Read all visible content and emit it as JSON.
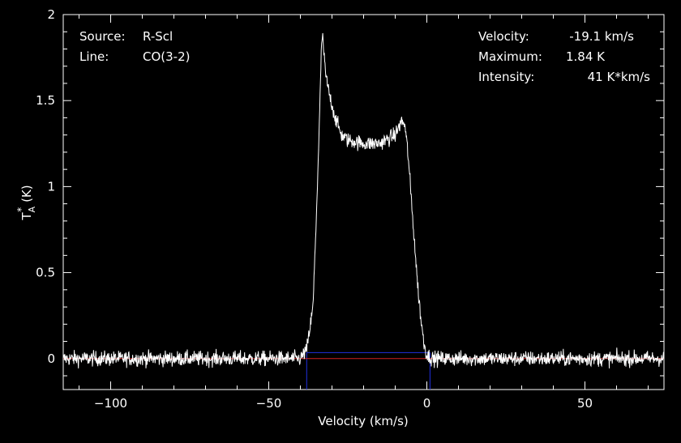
{
  "header": {
    "source_label": "Source:",
    "source_value": "R-Scl",
    "line_label": "Line:",
    "line_value": "CO(3-2)",
    "velocity_label": "Velocity:",
    "velocity_value": "-19.1 km/s",
    "maximum_label": "Maximum:",
    "maximum_value": "1.84 K",
    "intensity_label": "Intensity:",
    "intensity_value": "41 K*km/s"
  },
  "chart_data": {
    "type": "line",
    "xlabel": "Velocity (km/s)",
    "ylabel_main": "T",
    "ylabel_sup": "*",
    "ylabel_sub": "A",
    "ylabel_unit": "(K)",
    "xlim": [
      -115,
      75
    ],
    "ylim": [
      -0.18,
      2.0
    ],
    "xticks": [
      -100,
      -50,
      0,
      50
    ],
    "xtick_labels": [
      "−100",
      "−50",
      "0",
      "50"
    ],
    "yticks": [
      0,
      0.5,
      1,
      1.5,
      2
    ],
    "ytick_labels": [
      "0",
      "0.5",
      "1",
      "1.5",
      "2"
    ],
    "colors": {
      "background": "#000000",
      "spectrum": "#ffffff",
      "baseline": "#d02020",
      "window": "#2030e0"
    },
    "baseline_y": 0,
    "window": {
      "x0": -38,
      "x1": 1,
      "y_top": 0.035
    },
    "spectrum": {
      "noise_rms": 0.022,
      "x": [
        -115,
        -40,
        -38,
        -36,
        -35,
        -34,
        -33.5,
        -33,
        -32.5,
        -32,
        -31,
        -29,
        -27,
        -25,
        -20,
        -15,
        -10,
        -8,
        -7,
        -6,
        -5,
        -4,
        -3,
        -2,
        -1,
        0,
        2,
        75
      ],
      "y": [
        0,
        0,
        0.05,
        0.3,
        0.8,
        1.35,
        1.72,
        1.9,
        1.75,
        1.65,
        1.55,
        1.4,
        1.3,
        1.27,
        1.25,
        1.25,
        1.3,
        1.38,
        1.36,
        1.2,
        0.95,
        0.7,
        0.45,
        0.25,
        0.1,
        0.02,
        0,
        0
      ]
    }
  }
}
